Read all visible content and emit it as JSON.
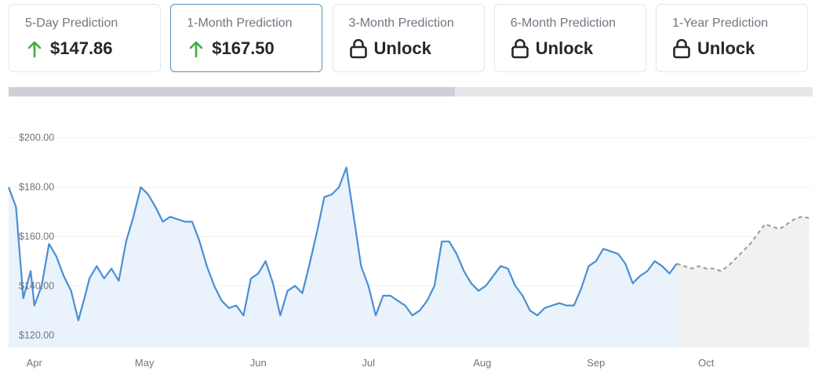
{
  "cards": [
    {
      "label": "5-Day Prediction",
      "value": "$147.86",
      "icon": "arrow-up-icon",
      "active": false
    },
    {
      "label": "1-Month Prediction",
      "value": "$167.50",
      "icon": "arrow-up-icon",
      "active": true
    },
    {
      "label": "3-Month Prediction",
      "value": "Unlock",
      "icon": "lock-icon",
      "active": false
    },
    {
      "label": "6-Month Prediction",
      "value": "Unlock",
      "icon": "lock-icon",
      "active": false
    },
    {
      "label": "1-Year Prediction",
      "value": "Unlock",
      "icon": "lock-icon",
      "active": false
    }
  ],
  "progress": {
    "fraction": 0.555
  },
  "colors": {
    "up_arrow": "#3fae3f",
    "actual_line": "#4a8fd4",
    "actual_fill": "#eaf2fb",
    "forecast_line": "#9a9a9a",
    "forecast_fill": "#f1f1f1",
    "card_active_border": "#5a8fb5"
  },
  "chart_data": {
    "type": "line",
    "title": "",
    "xlabel": "",
    "ylabel": "",
    "ylim": [
      115,
      205
    ],
    "y_ticks": [
      {
        "value": 120,
        "label": "$120.00"
      },
      {
        "value": 140,
        "label": "$140.00"
      },
      {
        "value": 160,
        "label": "$160.00"
      },
      {
        "value": 180,
        "label": "$180.00"
      },
      {
        "value": 200,
        "label": "$200.00"
      }
    ],
    "x_ticks": [
      {
        "value": "2024-04-01",
        "label": "Apr"
      },
      {
        "value": "2024-05-01",
        "label": "May"
      },
      {
        "value": "2024-06-01",
        "label": "Jun"
      },
      {
        "value": "2024-07-01",
        "label": "Jul"
      },
      {
        "value": "2024-08-01",
        "label": "Aug"
      },
      {
        "value": "2024-09-01",
        "label": "Sep"
      },
      {
        "value": "2024-10-01",
        "label": "Oct"
      }
    ],
    "xlim": [
      "2024-03-25",
      "2024-10-30"
    ],
    "grid": true,
    "series": [
      {
        "type": "actual",
        "x": [
          "2024-03-25",
          "2024-03-27",
          "2024-03-29",
          "2024-03-31",
          "2024-04-01",
          "2024-04-03",
          "2024-04-05",
          "2024-04-07",
          "2024-04-09",
          "2024-04-11",
          "2024-04-13",
          "2024-04-15",
          "2024-04-16",
          "2024-04-18",
          "2024-04-20",
          "2024-04-22",
          "2024-04-24",
          "2024-04-26",
          "2024-04-28",
          "2024-04-30",
          "2024-05-02",
          "2024-05-04",
          "2024-05-06",
          "2024-05-08",
          "2024-05-10",
          "2024-05-12",
          "2024-05-14",
          "2024-05-16",
          "2024-05-18",
          "2024-05-20",
          "2024-05-22",
          "2024-05-24",
          "2024-05-26",
          "2024-05-28",
          "2024-05-30",
          "2024-06-01",
          "2024-06-03",
          "2024-06-05",
          "2024-06-07",
          "2024-06-09",
          "2024-06-11",
          "2024-06-13",
          "2024-06-15",
          "2024-06-17",
          "2024-06-19",
          "2024-06-21",
          "2024-06-23",
          "2024-06-25",
          "2024-06-27",
          "2024-06-29",
          "2024-07-01",
          "2024-07-03",
          "2024-07-05",
          "2024-07-07",
          "2024-07-09",
          "2024-07-11",
          "2024-07-13",
          "2024-07-15",
          "2024-07-17",
          "2024-07-19",
          "2024-07-21",
          "2024-07-23",
          "2024-07-25",
          "2024-07-27",
          "2024-07-29",
          "2024-07-31",
          "2024-08-02",
          "2024-08-04",
          "2024-08-06",
          "2024-08-08",
          "2024-08-10",
          "2024-08-12",
          "2024-08-14",
          "2024-08-16",
          "2024-08-18",
          "2024-08-20",
          "2024-08-22",
          "2024-08-24",
          "2024-08-26",
          "2024-08-28",
          "2024-08-30",
          "2024-09-01",
          "2024-09-03",
          "2024-09-05",
          "2024-09-07",
          "2024-09-09",
          "2024-09-11",
          "2024-09-13",
          "2024-09-15",
          "2024-09-17",
          "2024-09-19",
          "2024-09-21",
          "2024-09-23"
        ],
        "y": [
          180,
          172,
          135,
          146,
          132,
          140,
          157,
          152,
          144,
          138,
          126,
          137,
          143,
          148,
          143,
          147,
          142,
          158,
          168,
          180,
          177,
          172,
          166,
          168,
          167,
          166,
          166,
          158,
          148,
          140,
          134,
          131,
          132,
          128,
          143,
          145,
          150,
          141,
          128,
          138,
          140,
          137,
          149,
          162,
          176,
          177,
          180,
          188,
          168,
          148,
          140,
          128,
          136,
          136,
          134,
          132,
          128,
          130,
          134,
          140,
          158,
          158,
          153,
          146,
          141,
          138,
          140,
          144,
          148,
          147,
          140,
          136,
          130,
          128,
          131,
          132,
          133,
          132,
          132,
          139,
          148,
          150,
          155,
          154,
          153,
          149,
          141,
          144,
          146,
          150,
          148,
          145,
          149
        ],
        "color": "#4a8fd4"
      },
      {
        "type": "forecast",
        "x": [
          "2024-09-23",
          "2024-09-25",
          "2024-09-27",
          "2024-09-29",
          "2024-10-01",
          "2024-10-03",
          "2024-10-05",
          "2024-10-07",
          "2024-10-09",
          "2024-10-11",
          "2024-10-13",
          "2024-10-15",
          "2024-10-17",
          "2024-10-19",
          "2024-10-21",
          "2024-10-23",
          "2024-10-25",
          "2024-10-27",
          "2024-10-29"
        ],
        "y": [
          149,
          148,
          147,
          148,
          147,
          147,
          146,
          148,
          151,
          154,
          157,
          161,
          165,
          164,
          163,
          165,
          167,
          168,
          167.5
        ],
        "color": "#9a9a9a",
        "dashed": true
      }
    ]
  }
}
